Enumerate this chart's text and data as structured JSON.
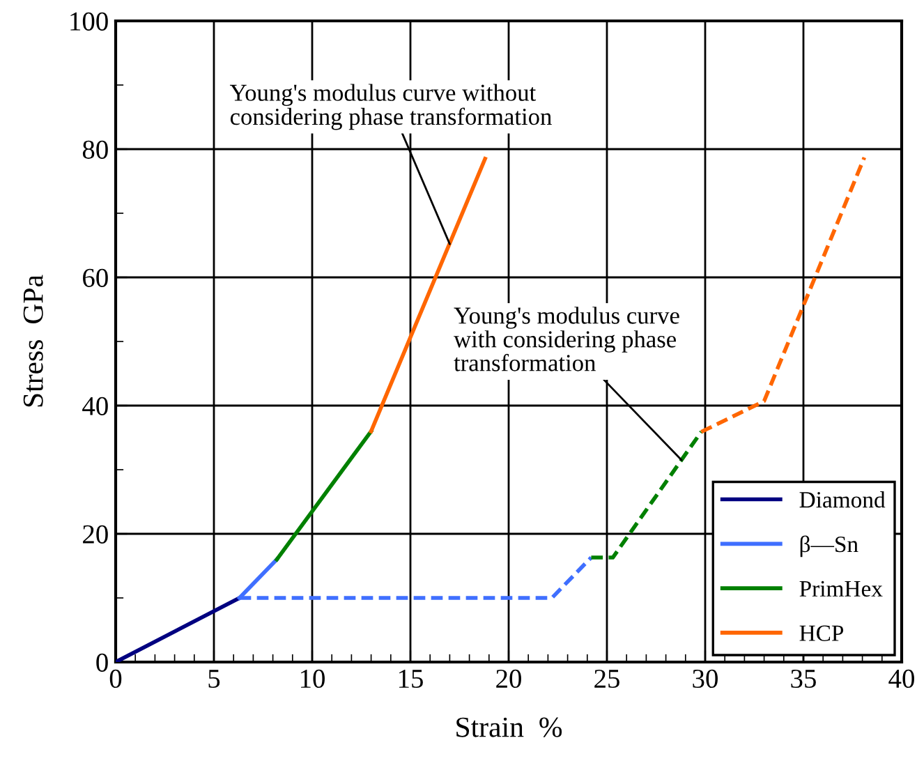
{
  "chart_data": {
    "type": "line",
    "xlabel": "Strain  %",
    "ylabel": "Stress  GPa",
    "xlim": [
      0,
      40
    ],
    "ylim": [
      0,
      100
    ],
    "xticks": [
      0,
      {
        "value": 1,
        "label": null
      },
      {
        "value": 2,
        "label": null
      },
      {
        "value": 3,
        "label": null
      },
      {
        "value": 4,
        "label": null
      },
      5,
      {
        "value": 6,
        "label": null
      },
      {
        "value": 7,
        "label": null
      },
      {
        "value": 8,
        "label": null
      },
      {
        "value": 9,
        "label": null
      },
      10,
      {
        "value": 11,
        "label": null
      },
      {
        "value": 12,
        "label": null
      },
      {
        "value": 13,
        "label": null
      },
      {
        "value": 14,
        "label": null
      },
      15,
      {
        "value": 16,
        "label": null
      },
      {
        "value": 17,
        "label": null
      },
      {
        "value": 18,
        "label": null
      },
      {
        "value": 19,
        "label": null
      },
      20,
      {
        "value": 21,
        "label": null
      },
      {
        "value": 22,
        "label": null
      },
      {
        "value": 23,
        "label": null
      },
      {
        "value": 24,
        "label": null
      },
      25,
      {
        "value": 26,
        "label": null
      },
      {
        "value": 27,
        "label": null
      },
      {
        "value": 28,
        "label": null
      },
      {
        "value": 29,
        "label": null
      },
      30,
      {
        "value": 31,
        "label": null
      },
      {
        "value": 32,
        "label": null
      },
      {
        "value": 33,
        "label": null
      },
      {
        "value": 34,
        "label": null
      },
      35,
      {
        "value": 36,
        "label": null
      },
      {
        "value": 37,
        "label": null
      },
      {
        "value": 38,
        "label": null
      },
      {
        "value": 39,
        "label": null
      },
      40
    ],
    "yticks": [
      0,
      {
        "value": 10,
        "label": null
      },
      20,
      {
        "value": 30,
        "label": null
      },
      40,
      {
        "value": 50,
        "label": null
      },
      60,
      {
        "value": 70,
        "label": null
      },
      80,
      {
        "value": 90,
        "label": null
      },
      100
    ],
    "grid": true,
    "legend": "bottom right",
    "marker": "none",
    "series": [
      {
        "name": "Diamond",
        "color": "#000080",
        "x": [
          0,
          6.3
        ],
        "values": [
          0,
          10
        ],
        "line_style": "solid"
      },
      {
        "name": "β—Sn",
        "color": "#3f6fff",
        "x": [
          6.3,
          8.2
        ],
        "values": [
          10,
          16
        ],
        "line_style": "solid"
      },
      {
        "name": "PrimHex",
        "color": "#008000",
        "x": [
          8.2,
          13
        ],
        "values": [
          16,
          36
        ],
        "line_style": "solid"
      },
      {
        "name": "HCP",
        "color": "#ff6600",
        "x": [
          13,
          18.8
        ],
        "values": [
          36,
          78.5
        ],
        "line_style": "solid"
      },
      {
        "color": "#3f6fff",
        "x": [
          6.3,
          22.2,
          24.2
        ],
        "values": [
          10,
          10,
          16.3
        ],
        "line_style": "dashed"
      },
      {
        "color": "#008000",
        "x": [
          24.2,
          25.3,
          29.8
        ],
        "values": [
          16.3,
          16.3,
          35.9
        ],
        "line_style": "dashed"
      },
      {
        "color": "#ff6600",
        "x": [
          29.8,
          33,
          38.1
        ],
        "values": [
          35.9,
          40.7,
          78.7
        ],
        "line_style": "dashed"
      }
    ],
    "annotations": [
      {
        "text": "Young's modulus curve without\nconsidering phase transformation",
        "x": 17.0,
        "y": 65.2
      },
      {
        "text": "Young's modulus curve\nwith considering phase\ntransformation",
        "x": 28.8,
        "y": 31.5
      }
    ]
  }
}
